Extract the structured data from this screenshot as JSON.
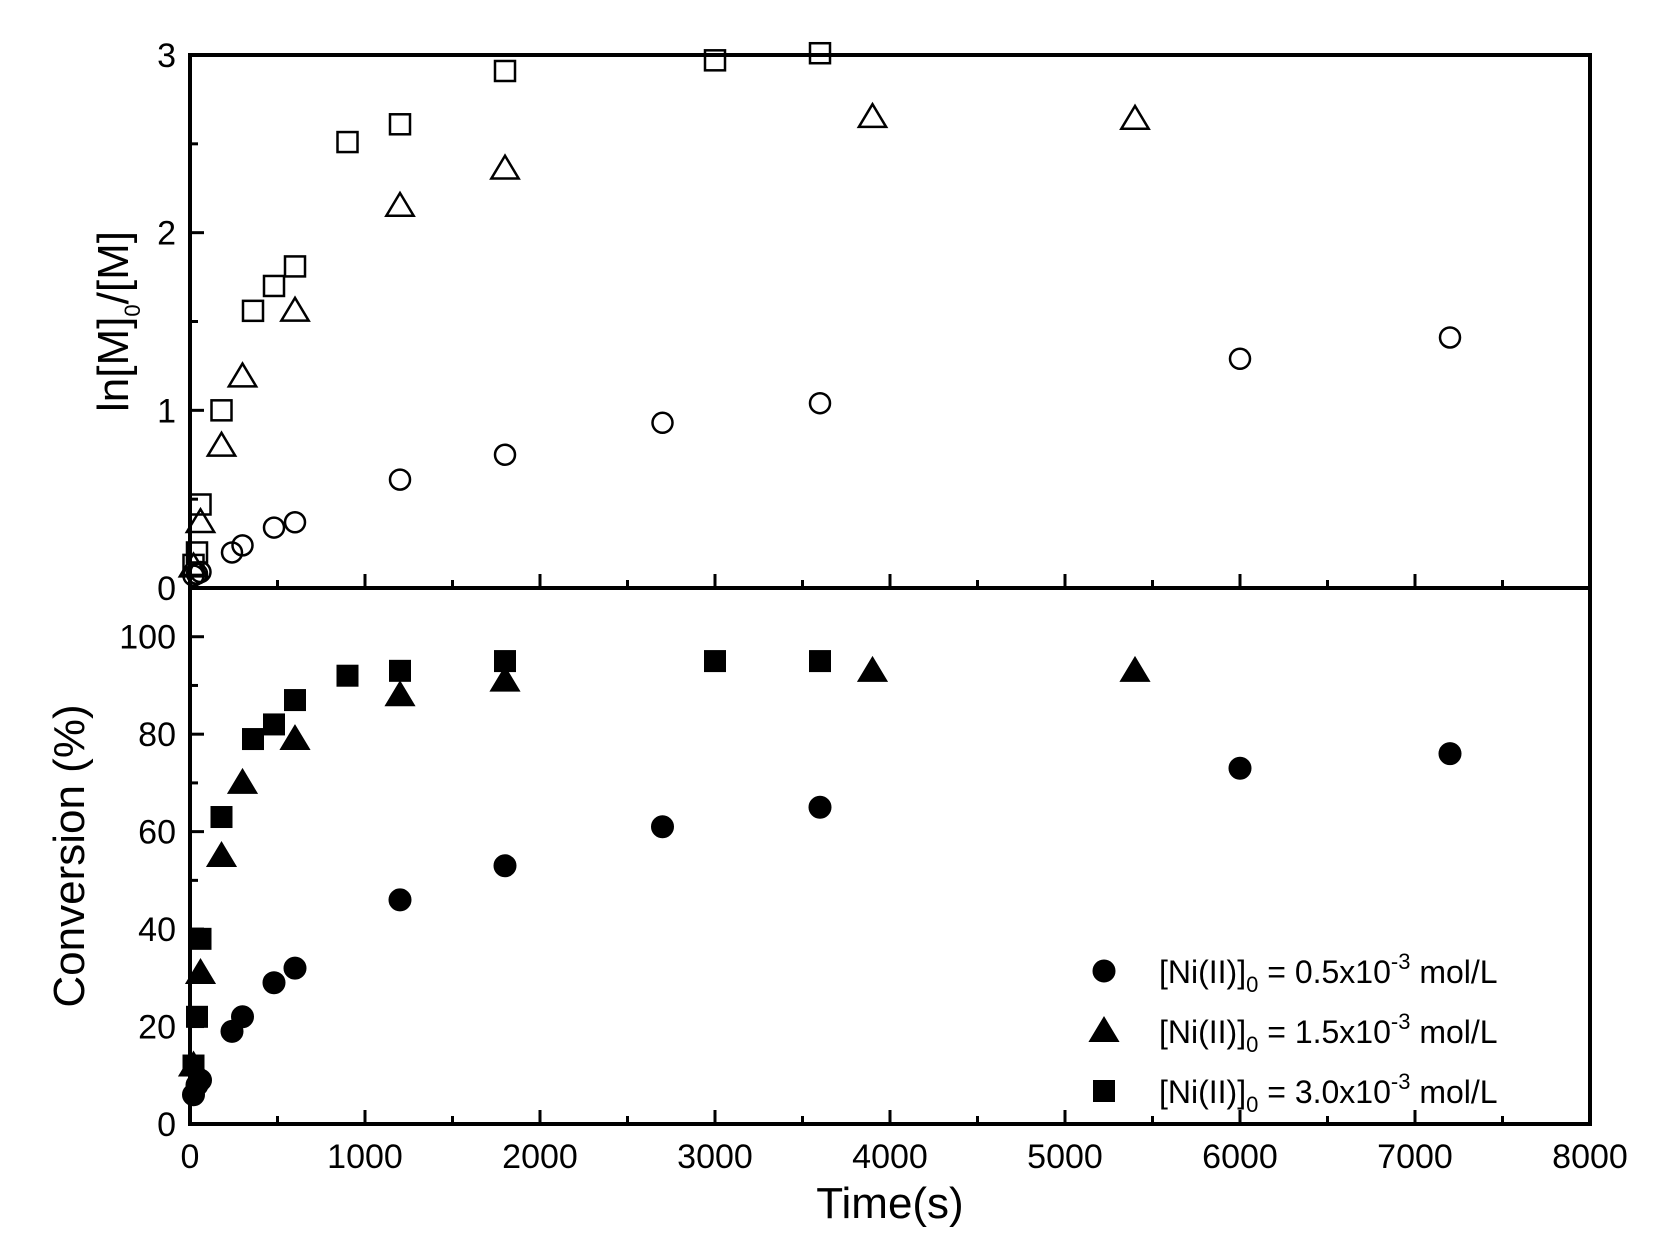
{
  "chart_data": [
    {
      "type": "scatter",
      "panel": "top",
      "ylabel": {
        "main": "ln[M]",
        "sub": "0",
        "tail": "/[M]"
      },
      "xlim": [
        0,
        8000
      ],
      "ylim": [
        0,
        3
      ],
      "yticks": [
        "0",
        "1",
        "2",
        "3"
      ],
      "series": [
        {
          "marker": "open-circle",
          "x": [
            20,
            40,
            60,
            240,
            300,
            480,
            600,
            1200,
            1800,
            2700,
            3600,
            6000,
            7200
          ],
          "y": [
            0.07,
            0.08,
            0.09,
            0.2,
            0.24,
            0.34,
            0.37,
            0.61,
            0.75,
            0.93,
            1.04,
            1.29,
            1.41
          ]
        },
        {
          "marker": "open-triangle",
          "x": [
            20,
            60,
            180,
            300,
            600,
            1200,
            1800,
            3900,
            5400
          ],
          "y": [
            0.12,
            0.37,
            0.8,
            1.19,
            1.56,
            2.15,
            2.36,
            2.65,
            2.64
          ]
        },
        {
          "marker": "open-square",
          "x": [
            20,
            40,
            60,
            180,
            360,
            480,
            600,
            900,
            1200,
            1800,
            3000,
            3600
          ],
          "y": [
            0.13,
            0.2,
            0.47,
            1.0,
            1.56,
            1.7,
            1.81,
            2.51,
            2.61,
            2.91,
            2.97,
            3.01
          ]
        }
      ]
    },
    {
      "type": "scatter",
      "panel": "bottom",
      "ylabel": "Conversion (%)",
      "xlabel": "Time(s)",
      "xlim": [
        0,
        8000
      ],
      "ylim": [
        0,
        110
      ],
      "xticks": [
        "0",
        "1000",
        "2000",
        "3000",
        "4000",
        "5000",
        "6000",
        "7000",
        "8000"
      ],
      "yticks": [
        "0",
        "20",
        "40",
        "60",
        "80",
        "100"
      ],
      "legend_position": "bottom-right",
      "series": [
        {
          "marker": "filled-circle",
          "legend": {
            "pre": "[Ni(II)]",
            "sub": "0",
            "mid": " = 0.5x10",
            "sup": "-3",
            "post": " mol/L"
          },
          "x": [
            20,
            40,
            60,
            240,
            300,
            480,
            600,
            1200,
            1800,
            2700,
            3600,
            6000,
            7200
          ],
          "y": [
            6,
            8,
            9,
            19,
            22,
            29,
            32,
            46,
            53,
            61,
            65,
            73,
            76
          ]
        },
        {
          "marker": "filled-triangle",
          "legend": {
            "pre": "[Ni(II)]",
            "sub": "0",
            "mid": " = 1.5x10",
            "sup": "-3",
            "post": " mol/L"
          },
          "x": [
            20,
            60,
            180,
            300,
            600,
            1200,
            1800,
            3900,
            5400
          ],
          "y": [
            12,
            31,
            55,
            70,
            79,
            88,
            91,
            93,
            93
          ]
        },
        {
          "marker": "filled-square",
          "legend": {
            "pre": "[Ni(II)]",
            "sub": "0",
            "mid": " = 3.0x10",
            "sup": "-3",
            "post": " mol/L"
          },
          "x": [
            20,
            40,
            60,
            180,
            360,
            480,
            600,
            900,
            1200,
            1800,
            3000,
            3600
          ],
          "y": [
            12,
            22,
            38,
            63,
            79,
            82,
            87,
            92,
            93,
            95,
            95,
            95
          ]
        }
      ]
    }
  ]
}
